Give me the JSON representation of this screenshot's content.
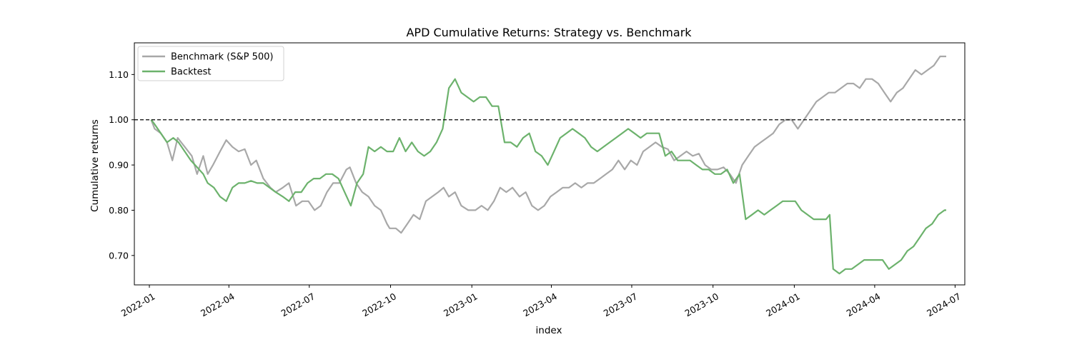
{
  "chart_data": {
    "type": "line",
    "title": "APD Cumulative Returns: Strategy vs. Benchmark",
    "xlabel": "index",
    "ylabel": "Cumulative returns",
    "x_range": [
      "2021-12-15",
      "2024-07-12"
    ],
    "ylim": [
      0.635,
      1.17
    ],
    "x_ticks": [
      "2022-01",
      "2022-04",
      "2022-07",
      "2022-10",
      "2023-01",
      "2023-04",
      "2023-07",
      "2023-10",
      "2024-01",
      "2024-04",
      "2024-07"
    ],
    "y_ticks": [
      0.7,
      0.8,
      0.9,
      1.0,
      1.1
    ],
    "y_tick_labels": [
      "0.70",
      "0.80",
      "0.90",
      "1.00",
      "1.10"
    ],
    "grid": false,
    "legend_position": "upper left",
    "reference_line": {
      "y": 1.0,
      "style": "dashed",
      "color": "#000000"
    },
    "series": [
      {
        "name": "Benchmark (S&P 500)",
        "color": "#a8a8a8",
        "points": [
          [
            "2022-01-03",
            1.0
          ],
          [
            "2022-01-07",
            0.98
          ],
          [
            "2022-01-14",
            0.97
          ],
          [
            "2022-01-21",
            0.95
          ],
          [
            "2022-01-27",
            0.91
          ],
          [
            "2022-02-02",
            0.96
          ],
          [
            "2022-02-10",
            0.94
          ],
          [
            "2022-02-18",
            0.92
          ],
          [
            "2022-02-24",
            0.88
          ],
          [
            "2022-03-03",
            0.92
          ],
          [
            "2022-03-08",
            0.88
          ],
          [
            "2022-03-14",
            0.9
          ],
          [
            "2022-03-22",
            0.93
          ],
          [
            "2022-03-29",
            0.955
          ],
          [
            "2022-04-05",
            0.94
          ],
          [
            "2022-04-12",
            0.93
          ],
          [
            "2022-04-19",
            0.935
          ],
          [
            "2022-04-26",
            0.9
          ],
          [
            "2022-05-02",
            0.91
          ],
          [
            "2022-05-10",
            0.87
          ],
          [
            "2022-05-18",
            0.85
          ],
          [
            "2022-05-24",
            0.84
          ],
          [
            "2022-06-01",
            0.85
          ],
          [
            "2022-06-08",
            0.86
          ],
          [
            "2022-06-16",
            0.81
          ],
          [
            "2022-06-23",
            0.82
          ],
          [
            "2022-06-30",
            0.82
          ],
          [
            "2022-07-07",
            0.8
          ],
          [
            "2022-07-14",
            0.81
          ],
          [
            "2022-07-21",
            0.84
          ],
          [
            "2022-07-28",
            0.86
          ],
          [
            "2022-08-04",
            0.86
          ],
          [
            "2022-08-12",
            0.89
          ],
          [
            "2022-08-16",
            0.895
          ],
          [
            "2022-08-23",
            0.86
          ],
          [
            "2022-08-30",
            0.84
          ],
          [
            "2022-09-06",
            0.83
          ],
          [
            "2022-09-13",
            0.81
          ],
          [
            "2022-09-20",
            0.8
          ],
          [
            "2022-09-27",
            0.77
          ],
          [
            "2022-09-30",
            0.76
          ],
          [
            "2022-10-07",
            0.76
          ],
          [
            "2022-10-13",
            0.75
          ],
          [
            "2022-10-20",
            0.77
          ],
          [
            "2022-10-27",
            0.79
          ],
          [
            "2022-11-03",
            0.78
          ],
          [
            "2022-11-10",
            0.82
          ],
          [
            "2022-11-17",
            0.83
          ],
          [
            "2022-11-24",
            0.84
          ],
          [
            "2022-11-30",
            0.85
          ],
          [
            "2022-12-06",
            0.83
          ],
          [
            "2022-12-13",
            0.84
          ],
          [
            "2022-12-20",
            0.81
          ],
          [
            "2022-12-28",
            0.8
          ],
          [
            "2023-01-05",
            0.8
          ],
          [
            "2023-01-12",
            0.81
          ],
          [
            "2023-01-19",
            0.8
          ],
          [
            "2023-01-26",
            0.82
          ],
          [
            "2023-02-02",
            0.85
          ],
          [
            "2023-02-09",
            0.84
          ],
          [
            "2023-02-16",
            0.85
          ],
          [
            "2023-02-24",
            0.83
          ],
          [
            "2023-03-03",
            0.84
          ],
          [
            "2023-03-10",
            0.81
          ],
          [
            "2023-03-17",
            0.8
          ],
          [
            "2023-03-24",
            0.81
          ],
          [
            "2023-03-31",
            0.83
          ],
          [
            "2023-04-07",
            0.84
          ],
          [
            "2023-04-14",
            0.85
          ],
          [
            "2023-04-21",
            0.85
          ],
          [
            "2023-04-28",
            0.86
          ],
          [
            "2023-05-05",
            0.85
          ],
          [
            "2023-05-12",
            0.86
          ],
          [
            "2023-05-19",
            0.86
          ],
          [
            "2023-05-26",
            0.87
          ],
          [
            "2023-06-02",
            0.88
          ],
          [
            "2023-06-09",
            0.89
          ],
          [
            "2023-06-16",
            0.91
          ],
          [
            "2023-06-23",
            0.89
          ],
          [
            "2023-06-30",
            0.91
          ],
          [
            "2023-07-07",
            0.9
          ],
          [
            "2023-07-14",
            0.93
          ],
          [
            "2023-07-21",
            0.94
          ],
          [
            "2023-07-28",
            0.95
          ],
          [
            "2023-08-04",
            0.94
          ],
          [
            "2023-08-11",
            0.935
          ],
          [
            "2023-08-18",
            0.91
          ],
          [
            "2023-08-25",
            0.92
          ],
          [
            "2023-09-01",
            0.93
          ],
          [
            "2023-09-08",
            0.92
          ],
          [
            "2023-09-15",
            0.925
          ],
          [
            "2023-09-22",
            0.9
          ],
          [
            "2023-09-29",
            0.89
          ],
          [
            "2023-10-06",
            0.89
          ],
          [
            "2023-10-13",
            0.895
          ],
          [
            "2023-10-20",
            0.88
          ],
          [
            "2023-10-27",
            0.86
          ],
          [
            "2023-11-03",
            0.9
          ],
          [
            "2023-11-10",
            0.92
          ],
          [
            "2023-11-17",
            0.94
          ],
          [
            "2023-11-24",
            0.95
          ],
          [
            "2023-12-01",
            0.96
          ],
          [
            "2023-12-08",
            0.97
          ],
          [
            "2023-12-15",
            0.99
          ],
          [
            "2023-12-22",
            1.0
          ],
          [
            "2023-12-29",
            1.0
          ],
          [
            "2024-01-05",
            0.98
          ],
          [
            "2024-01-12",
            1.0
          ],
          [
            "2024-01-19",
            1.02
          ],
          [
            "2024-01-26",
            1.04
          ],
          [
            "2024-02-02",
            1.05
          ],
          [
            "2024-02-09",
            1.06
          ],
          [
            "2024-02-16",
            1.06
          ],
          [
            "2024-02-23",
            1.07
          ],
          [
            "2024-03-01",
            1.08
          ],
          [
            "2024-03-08",
            1.08
          ],
          [
            "2024-03-15",
            1.07
          ],
          [
            "2024-03-22",
            1.09
          ],
          [
            "2024-03-29",
            1.09
          ],
          [
            "2024-04-05",
            1.08
          ],
          [
            "2024-04-12",
            1.06
          ],
          [
            "2024-04-19",
            1.04
          ],
          [
            "2024-04-26",
            1.06
          ],
          [
            "2024-05-03",
            1.07
          ],
          [
            "2024-05-10",
            1.09
          ],
          [
            "2024-05-17",
            1.11
          ],
          [
            "2024-05-24",
            1.1
          ],
          [
            "2024-05-31",
            1.11
          ],
          [
            "2024-06-07",
            1.12
          ],
          [
            "2024-06-14",
            1.14
          ],
          [
            "2024-06-21",
            1.14
          ]
        ]
      },
      {
        "name": "Backtest",
        "color": "#6cb26c",
        "points": [
          [
            "2022-01-03",
            1.0
          ],
          [
            "2022-01-07",
            0.99
          ],
          [
            "2022-01-14",
            0.97
          ],
          [
            "2022-01-21",
            0.95
          ],
          [
            "2022-01-28",
            0.96
          ],
          [
            "2022-02-03",
            0.95
          ],
          [
            "2022-02-10",
            0.93
          ],
          [
            "2022-02-17",
            0.91
          ],
          [
            "2022-02-24",
            0.895
          ],
          [
            "2022-03-03",
            0.88
          ],
          [
            "2022-03-08",
            0.86
          ],
          [
            "2022-03-15",
            0.85
          ],
          [
            "2022-03-22",
            0.83
          ],
          [
            "2022-03-29",
            0.82
          ],
          [
            "2022-04-05",
            0.85
          ],
          [
            "2022-04-12",
            0.86
          ],
          [
            "2022-04-19",
            0.86
          ],
          [
            "2022-04-26",
            0.865
          ],
          [
            "2022-05-03",
            0.86
          ],
          [
            "2022-05-10",
            0.86
          ],
          [
            "2022-05-17",
            0.85
          ],
          [
            "2022-05-24",
            0.84
          ],
          [
            "2022-06-01",
            0.83
          ],
          [
            "2022-06-08",
            0.82
          ],
          [
            "2022-06-15",
            0.84
          ],
          [
            "2022-06-22",
            0.84
          ],
          [
            "2022-06-29",
            0.86
          ],
          [
            "2022-07-06",
            0.87
          ],
          [
            "2022-07-13",
            0.87
          ],
          [
            "2022-07-20",
            0.88
          ],
          [
            "2022-07-27",
            0.88
          ],
          [
            "2022-08-03",
            0.87
          ],
          [
            "2022-08-10",
            0.84
          ],
          [
            "2022-08-17",
            0.81
          ],
          [
            "2022-08-24",
            0.86
          ],
          [
            "2022-08-31",
            0.88
          ],
          [
            "2022-09-06",
            0.94
          ],
          [
            "2022-09-13",
            0.93
          ],
          [
            "2022-09-20",
            0.94
          ],
          [
            "2022-09-27",
            0.93
          ],
          [
            "2022-10-04",
            0.93
          ],
          [
            "2022-10-11",
            0.96
          ],
          [
            "2022-10-18",
            0.93
          ],
          [
            "2022-10-25",
            0.95
          ],
          [
            "2022-11-01",
            0.93
          ],
          [
            "2022-11-08",
            0.92
          ],
          [
            "2022-11-15",
            0.93
          ],
          [
            "2022-11-22",
            0.95
          ],
          [
            "2022-11-29",
            0.98
          ],
          [
            "2022-12-06",
            1.07
          ],
          [
            "2022-12-13",
            1.09
          ],
          [
            "2022-12-20",
            1.06
          ],
          [
            "2022-12-27",
            1.05
          ],
          [
            "2023-01-03",
            1.04
          ],
          [
            "2023-01-10",
            1.05
          ],
          [
            "2023-01-17",
            1.05
          ],
          [
            "2023-01-24",
            1.03
          ],
          [
            "2023-01-31",
            1.03
          ],
          [
            "2023-02-07",
            0.95
          ],
          [
            "2023-02-14",
            0.95
          ],
          [
            "2023-02-21",
            0.94
          ],
          [
            "2023-02-28",
            0.96
          ],
          [
            "2023-03-07",
            0.97
          ],
          [
            "2023-03-14",
            0.93
          ],
          [
            "2023-03-21",
            0.92
          ],
          [
            "2023-03-28",
            0.9
          ],
          [
            "2023-04-04",
            0.93
          ],
          [
            "2023-04-11",
            0.96
          ],
          [
            "2023-04-18",
            0.97
          ],
          [
            "2023-04-25",
            0.98
          ],
          [
            "2023-05-02",
            0.97
          ],
          [
            "2023-05-09",
            0.96
          ],
          [
            "2023-05-16",
            0.94
          ],
          [
            "2023-05-23",
            0.93
          ],
          [
            "2023-05-30",
            0.94
          ],
          [
            "2023-06-06",
            0.95
          ],
          [
            "2023-06-13",
            0.96
          ],
          [
            "2023-06-20",
            0.97
          ],
          [
            "2023-06-27",
            0.98
          ],
          [
            "2023-07-04",
            0.97
          ],
          [
            "2023-07-11",
            0.96
          ],
          [
            "2023-07-18",
            0.97
          ],
          [
            "2023-07-25",
            0.97
          ],
          [
            "2023-08-01",
            0.97
          ],
          [
            "2023-08-08",
            0.92
          ],
          [
            "2023-08-15",
            0.93
          ],
          [
            "2023-08-22",
            0.91
          ],
          [
            "2023-08-29",
            0.91
          ],
          [
            "2023-09-05",
            0.91
          ],
          [
            "2023-09-12",
            0.9
          ],
          [
            "2023-09-19",
            0.89
          ],
          [
            "2023-09-26",
            0.89
          ],
          [
            "2023-10-03",
            0.88
          ],
          [
            "2023-10-10",
            0.88
          ],
          [
            "2023-10-17",
            0.89
          ],
          [
            "2023-10-24",
            0.86
          ],
          [
            "2023-10-31",
            0.88
          ],
          [
            "2023-11-07",
            0.78
          ],
          [
            "2023-11-14",
            0.79
          ],
          [
            "2023-11-21",
            0.8
          ],
          [
            "2023-11-28",
            0.79
          ],
          [
            "2023-12-05",
            0.8
          ],
          [
            "2023-12-12",
            0.81
          ],
          [
            "2023-12-19",
            0.82
          ],
          [
            "2023-12-26",
            0.82
          ],
          [
            "2024-01-02",
            0.82
          ],
          [
            "2024-01-09",
            0.8
          ],
          [
            "2024-01-16",
            0.79
          ],
          [
            "2024-01-23",
            0.78
          ],
          [
            "2024-01-30",
            0.78
          ],
          [
            "2024-02-06",
            0.78
          ],
          [
            "2024-02-10",
            0.79
          ],
          [
            "2024-02-14",
            0.67
          ],
          [
            "2024-02-21",
            0.66
          ],
          [
            "2024-02-28",
            0.67
          ],
          [
            "2024-03-06",
            0.67
          ],
          [
            "2024-03-13",
            0.68
          ],
          [
            "2024-03-20",
            0.69
          ],
          [
            "2024-03-27",
            0.69
          ],
          [
            "2024-04-03",
            0.69
          ],
          [
            "2024-04-10",
            0.69
          ],
          [
            "2024-04-17",
            0.67
          ],
          [
            "2024-04-24",
            0.68
          ],
          [
            "2024-05-01",
            0.69
          ],
          [
            "2024-05-08",
            0.71
          ],
          [
            "2024-05-15",
            0.72
          ],
          [
            "2024-05-22",
            0.74
          ],
          [
            "2024-05-29",
            0.76
          ],
          [
            "2024-06-05",
            0.77
          ],
          [
            "2024-06-12",
            0.79
          ],
          [
            "2024-06-19",
            0.8
          ],
          [
            "2024-06-21",
            0.8
          ]
        ]
      }
    ]
  }
}
